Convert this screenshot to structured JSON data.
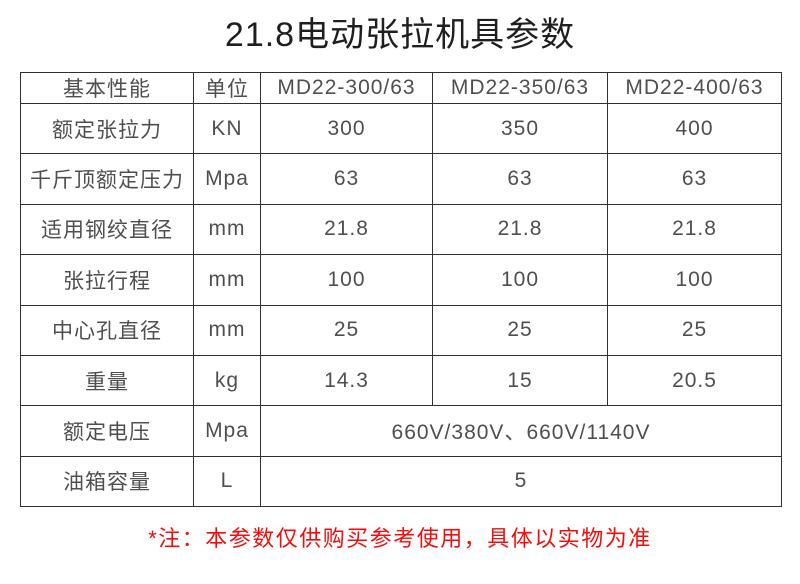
{
  "page": {
    "title": "21.8电动张拉机具参数",
    "footnote": "*注：本参数仅供购买参考使用，具体以实物为准"
  },
  "table": {
    "headers": [
      "基本性能",
      "单位",
      "MD22-300/63",
      "MD22-350/63",
      "MD22-400/63"
    ],
    "rows": [
      {
        "label": "额定张拉力",
        "unit": "KN",
        "values": [
          "300",
          "350",
          "400"
        ]
      },
      {
        "label": "千斤顶额定压力",
        "unit": "Mpa",
        "values": [
          "63",
          "63",
          "63"
        ]
      },
      {
        "label": "适用钢绞直径",
        "unit": "mm",
        "values": [
          "21.8",
          "21.8",
          "21.8"
        ]
      },
      {
        "label": "张拉行程",
        "unit": "mm",
        "values": [
          "100",
          "100",
          "100"
        ]
      },
      {
        "label": "中心孔直径",
        "unit": "mm",
        "values": [
          "25",
          "25",
          "25"
        ]
      },
      {
        "label": "重量",
        "unit": "kg",
        "values": [
          "14.3",
          "15",
          "20.5"
        ]
      },
      {
        "label": "额定电压",
        "unit": "Mpa",
        "values": [
          "660V/380V、660V/1140V"
        ],
        "merged": true
      },
      {
        "label": "油箱容量",
        "unit": "L",
        "values": [
          "5"
        ],
        "merged": true
      }
    ]
  },
  "colors": {
    "border": "#303030",
    "cell_text": "#4f4f4f",
    "title_text": "#1f1f1f",
    "note_red": "#f20d0d"
  }
}
